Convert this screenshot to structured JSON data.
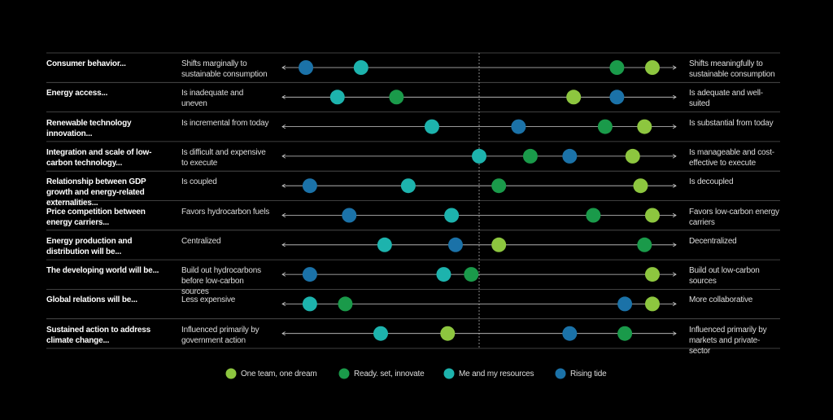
{
  "chart_data": {
    "type": "dot",
    "rows": [
      {
        "label": "Consumer behavior...",
        "left": "Shifts marginally to sustainable consumption",
        "right": "Shifts meaningfully to sustainable consumption"
      },
      {
        "label": "Energy access...",
        "left": "Is inadequate and uneven",
        "right": "Is adequate and well-suited"
      },
      {
        "label": "Renewable technology innovation...",
        "left": "Is incremental from today",
        "right": "Is substantial from today"
      },
      {
        "label": "Integration and scale of low-carbon technology...",
        "left": "Is difficult and expensive to execute",
        "right": "Is manageable and cost-effective to execute"
      },
      {
        "label": "Relationship between GDP growth and energy-related externalities...",
        "left": "Is coupled",
        "right": "Is decoupled"
      },
      {
        "label": "Price competition between energy carriers...",
        "left": "Favors hydrocarbon fuels",
        "right": "Favors low-carbon energy carriers"
      },
      {
        "label": "Energy production and distribution will be...",
        "left": "Centralized",
        "right": "Decentralized"
      },
      {
        "label": "The developing world will be...",
        "left": "Build out hydrocarbons before low-carbon sources",
        "right": "Build out low-carbon sources"
      },
      {
        "label": "Global relations will be...",
        "left": "Less expensive",
        "right": "More collaborative"
      },
      {
        "label": "Sustained action to address climate change...",
        "left": "Influenced primarily by government action",
        "right": "Influenced primarily by markets and private-sector"
      }
    ],
    "xlim": [
      0,
      100
    ],
    "series": [
      {
        "name": "One team, one dream",
        "color": "#8dc63f",
        "values": [
          94,
          74,
          92,
          89,
          91,
          94,
          55,
          94,
          94,
          42
        ]
      },
      {
        "name": "Ready. set, innovate",
        "color": "#1a9a4a",
        "values": [
          85,
          29,
          82,
          63,
          55,
          79,
          92,
          48,
          16,
          87
        ]
      },
      {
        "name": "Me and my resources",
        "color": "#1db3ad",
        "values": [
          20,
          14,
          38,
          50,
          32,
          43,
          26,
          41,
          7,
          25
        ]
      },
      {
        "name": "Rising tide",
        "color": "#1b72a8",
        "values": [
          6,
          85,
          60,
          73,
          7,
          17,
          44,
          7,
          87,
          73
        ]
      }
    ]
  }
}
